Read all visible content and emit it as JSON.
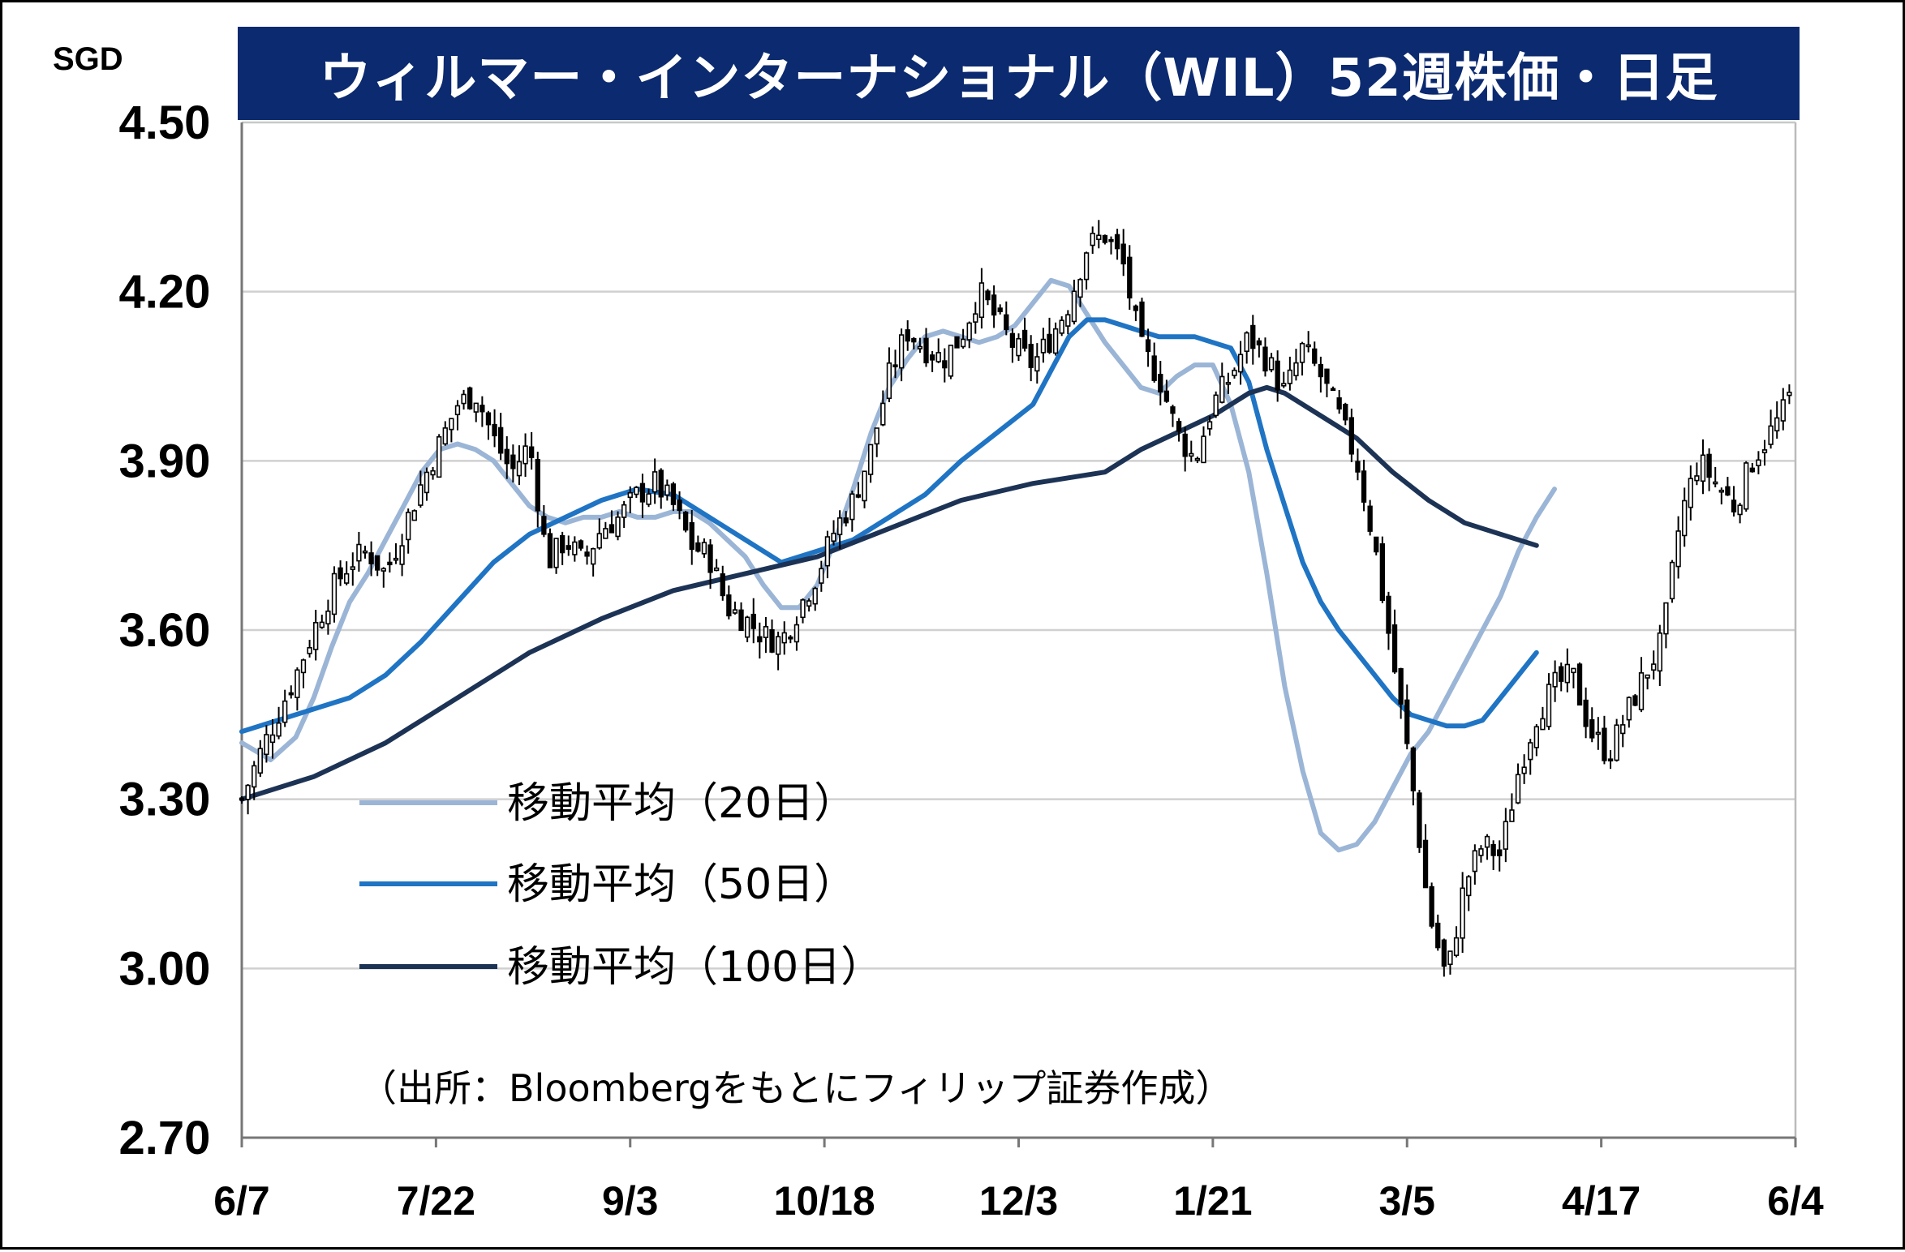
{
  "chart_data": {
    "type": "candlestick-line",
    "title": "ウィルマー・インターナショナル（WIL）52週株価・日足",
    "unit": "SGD",
    "ylim": [
      2.7,
      4.5
    ],
    "yticks": [
      "4.50",
      "4.20",
      "3.90",
      "3.60",
      "3.30",
      "3.00",
      "2.70"
    ],
    "ytick_values": [
      4.5,
      4.2,
      3.9,
      3.6,
      3.3,
      3.0,
      2.7
    ],
    "xticks": [
      "6/7",
      "7/22",
      "9/3",
      "10/18",
      "12/3",
      "1/21",
      "3/5",
      "4/17",
      "6/4"
    ],
    "n_days": 252,
    "grid": true,
    "legend_placement": "middle-left",
    "source": "（出所：Bloombergをもとにフィリップ証券作成）",
    "price_series": {
      "name": "",
      "knots": [
        [
          0,
          3.3
        ],
        [
          5,
          3.38
        ],
        [
          10,
          3.45
        ],
        [
          15,
          3.52
        ],
        [
          20,
          3.6
        ],
        [
          25,
          3.67
        ],
        [
          30,
          3.72
        ],
        [
          35,
          3.74
        ],
        [
          40,
          3.7
        ],
        [
          45,
          3.78
        ],
        [
          50,
          3.86
        ],
        [
          55,
          3.93
        ],
        [
          60,
          4.0
        ],
        [
          65,
          4.02
        ],
        [
          70,
          3.94
        ],
        [
          75,
          3.88
        ],
        [
          80,
          3.93
        ],
        [
          85,
          3.72
        ],
        [
          90,
          3.76
        ],
        [
          95,
          3.72
        ],
        [
          100,
          3.78
        ],
        [
          105,
          3.8
        ],
        [
          110,
          3.84
        ],
        [
          115,
          3.86
        ],
        [
          120,
          3.82
        ],
        [
          125,
          3.75
        ],
        [
          130,
          3.73
        ],
        [
          135,
          3.64
        ],
        [
          140,
          3.62
        ],
        [
          145,
          3.59
        ],
        [
          150,
          3.58
        ],
        [
          155,
          3.64
        ],
        [
          160,
          3.7
        ],
        [
          165,
          3.78
        ],
        [
          170,
          3.83
        ],
        [
          175,
          3.92
        ],
        [
          180,
          4.05
        ],
        [
          185,
          4.13
        ],
        [
          190,
          4.1
        ],
        [
          195,
          4.08
        ],
        [
          200,
          4.12
        ],
        [
          205,
          4.2
        ],
        [
          210,
          4.15
        ],
        [
          215,
          4.1
        ],
        [
          220,
          4.07
        ],
        [
          225,
          4.12
        ],
        [
          230,
          4.18
        ],
        [
          235,
          4.28
        ],
        [
          240,
          4.3
        ],
        [
          245,
          4.25
        ],
        [
          250,
          4.1
        ],
        [
          255,
          4.05
        ],
        [
          260,
          3.95
        ],
        [
          265,
          3.9
        ],
        [
          270,
          4.0
        ],
        [
          275,
          4.05
        ],
        [
          280,
          4.12
        ],
        [
          285,
          4.08
        ],
        [
          290,
          4.02
        ],
        [
          295,
          4.1
        ],
        [
          300,
          4.05
        ],
        [
          305,
          3.98
        ],
        [
          310,
          3.9
        ],
        [
          315,
          3.75
        ],
        [
          320,
          3.55
        ],
        [
          325,
          3.35
        ],
        [
          330,
          3.1
        ],
        [
          335,
          2.98
        ],
        [
          340,
          3.15
        ],
        [
          345,
          3.22
        ],
        [
          350,
          3.2
        ],
        [
          355,
          3.35
        ],
        [
          360,
          3.45
        ],
        [
          365,
          3.5
        ],
        [
          370,
          3.52
        ],
        [
          375,
          3.42
        ],
        [
          380,
          3.38
        ],
        [
          385,
          3.45
        ],
        [
          390,
          3.52
        ],
        [
          395,
          3.58
        ],
        [
          400,
          3.8
        ],
        [
          405,
          3.9
        ],
        [
          410,
          3.86
        ],
        [
          415,
          3.82
        ],
        [
          420,
          3.9
        ],
        [
          425,
          3.95
        ],
        [
          430,
          4.0
        ],
        [
          432,
          4.08
        ]
      ],
      "max_index": 432
    },
    "series": [
      {
        "name": "移動平均（20日）",
        "color": "#9bb5d6",
        "knots": [
          [
            0,
            3.4
          ],
          [
            8,
            3.37
          ],
          [
            15,
            3.41
          ],
          [
            20,
            3.48
          ],
          [
            25,
            3.57
          ],
          [
            30,
            3.65
          ],
          [
            35,
            3.7
          ],
          [
            40,
            3.76
          ],
          [
            45,
            3.82
          ],
          [
            50,
            3.88
          ],
          [
            55,
            3.92
          ],
          [
            60,
            3.93
          ],
          [
            65,
            3.92
          ],
          [
            70,
            3.9
          ],
          [
            75,
            3.86
          ],
          [
            80,
            3.82
          ],
          [
            85,
            3.8
          ],
          [
            90,
            3.79
          ],
          [
            95,
            3.8
          ],
          [
            100,
            3.8
          ],
          [
            105,
            3.81
          ],
          [
            110,
            3.8
          ],
          [
            115,
            3.8
          ],
          [
            120,
            3.81
          ],
          [
            125,
            3.81
          ],
          [
            130,
            3.79
          ],
          [
            135,
            3.76
          ],
          [
            140,
            3.73
          ],
          [
            145,
            3.68
          ],
          [
            150,
            3.64
          ],
          [
            155,
            3.64
          ],
          [
            160,
            3.68
          ],
          [
            165,
            3.76
          ],
          [
            170,
            3.85
          ],
          [
            175,
            3.95
          ],
          [
            180,
            4.03
          ],
          [
            185,
            4.08
          ],
          [
            190,
            4.12
          ],
          [
            195,
            4.13
          ],
          [
            200,
            4.12
          ],
          [
            205,
            4.11
          ],
          [
            210,
            4.12
          ],
          [
            215,
            4.14
          ],
          [
            220,
            4.18
          ],
          [
            225,
            4.22
          ],
          [
            230,
            4.21
          ],
          [
            235,
            4.16
          ],
          [
            240,
            4.11
          ],
          [
            245,
            4.07
          ],
          [
            250,
            4.03
          ],
          [
            255,
            4.02
          ],
          [
            260,
            4.05
          ],
          [
            265,
            4.07
          ],
          [
            270,
            4.07
          ],
          [
            275,
            4.0
          ],
          [
            280,
            3.88
          ],
          [
            285,
            3.7
          ],
          [
            290,
            3.5
          ],
          [
            295,
            3.35
          ],
          [
            300,
            3.24
          ],
          [
            305,
            3.21
          ],
          [
            310,
            3.22
          ],
          [
            315,
            3.26
          ],
          [
            320,
            3.32
          ],
          [
            325,
            3.38
          ],
          [
            330,
            3.42
          ],
          [
            335,
            3.48
          ],
          [
            340,
            3.54
          ],
          [
            345,
            3.6
          ],
          [
            350,
            3.66
          ],
          [
            355,
            3.74
          ],
          [
            360,
            3.8
          ],
          [
            365,
            3.85
          ]
        ]
      },
      {
        "name": "移動平均（50日）",
        "color": "#1f74c4",
        "knots": [
          [
            0,
            3.42
          ],
          [
            10,
            3.44
          ],
          [
            20,
            3.46
          ],
          [
            30,
            3.48
          ],
          [
            40,
            3.52
          ],
          [
            50,
            3.58
          ],
          [
            60,
            3.65
          ],
          [
            70,
            3.72
          ],
          [
            80,
            3.77
          ],
          [
            90,
            3.8
          ],
          [
            100,
            3.83
          ],
          [
            110,
            3.85
          ],
          [
            120,
            3.84
          ],
          [
            130,
            3.8
          ],
          [
            140,
            3.76
          ],
          [
            150,
            3.72
          ],
          [
            160,
            3.74
          ],
          [
            170,
            3.76
          ],
          [
            180,
            3.8
          ],
          [
            190,
            3.84
          ],
          [
            200,
            3.9
          ],
          [
            210,
            3.95
          ],
          [
            220,
            4.0
          ],
          [
            225,
            4.06
          ],
          [
            230,
            4.12
          ],
          [
            235,
            4.15
          ],
          [
            240,
            4.15
          ],
          [
            245,
            4.14
          ],
          [
            250,
            4.13
          ],
          [
            255,
            4.12
          ],
          [
            260,
            4.12
          ],
          [
            265,
            4.12
          ],
          [
            270,
            4.11
          ],
          [
            275,
            4.1
          ],
          [
            280,
            4.04
          ],
          [
            285,
            3.92
          ],
          [
            290,
            3.82
          ],
          [
            295,
            3.72
          ],
          [
            300,
            3.65
          ],
          [
            305,
            3.6
          ],
          [
            310,
            3.56
          ],
          [
            315,
            3.52
          ],
          [
            320,
            3.48
          ],
          [
            325,
            3.45
          ],
          [
            330,
            3.44
          ],
          [
            335,
            3.43
          ],
          [
            340,
            3.43
          ],
          [
            345,
            3.44
          ],
          [
            350,
            3.48
          ],
          [
            355,
            3.52
          ],
          [
            360,
            3.56
          ]
        ]
      },
      {
        "name": "移動平均（100日）",
        "color": "#1c3355",
        "knots": [
          [
            0,
            3.3
          ],
          [
            20,
            3.34
          ],
          [
            40,
            3.4
          ],
          [
            60,
            3.48
          ],
          [
            80,
            3.56
          ],
          [
            100,
            3.62
          ],
          [
            120,
            3.67
          ],
          [
            140,
            3.7
          ],
          [
            160,
            3.73
          ],
          [
            180,
            3.78
          ],
          [
            200,
            3.83
          ],
          [
            220,
            3.86
          ],
          [
            240,
            3.88
          ],
          [
            250,
            3.92
          ],
          [
            260,
            3.95
          ],
          [
            270,
            3.98
          ],
          [
            280,
            4.02
          ],
          [
            285,
            4.03
          ],
          [
            290,
            4.02
          ],
          [
            300,
            3.98
          ],
          [
            310,
            3.94
          ],
          [
            320,
            3.88
          ],
          [
            330,
            3.83
          ],
          [
            340,
            3.79
          ],
          [
            350,
            3.77
          ],
          [
            360,
            3.75
          ]
        ]
      }
    ]
  }
}
